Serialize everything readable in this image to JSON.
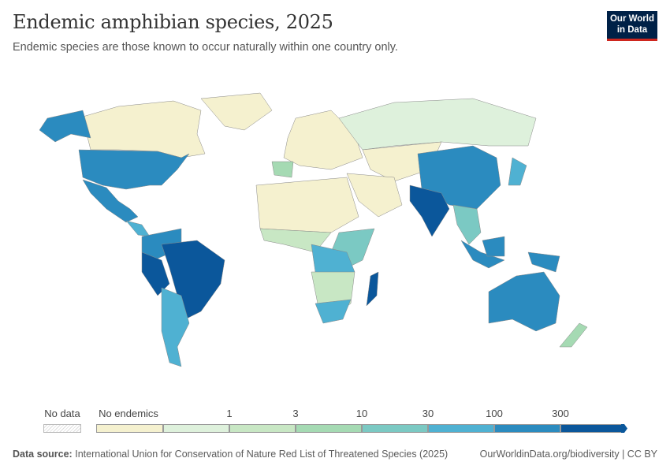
{
  "header": {
    "title": "Endemic amphibian species, 2025",
    "subtitle": "Endemic species are those known to occur naturally within one country only.",
    "logo_text": "Our World in Data"
  },
  "legend": {
    "no_data_label": "No data",
    "bins": [
      {
        "label": "No endemics",
        "color": "#f5f1cf"
      },
      {
        "label": "",
        "color": "#def1dc"
      },
      {
        "label": "1",
        "color": "#c8e7c4"
      },
      {
        "label": "3",
        "color": "#a5dab3"
      },
      {
        "label": "10",
        "color": "#7bc9c3"
      },
      {
        "label": "30",
        "color": "#4fb1d2"
      },
      {
        "label": "100",
        "color": "#2b8bbf"
      },
      {
        "label": "300",
        "color": "#0b579b"
      }
    ]
  },
  "footer": {
    "source_label": "Data source:",
    "source_text": "International Union for Conservation of Nature Red List of Threatened Species (2025)",
    "url": "OurWorldinData.org/biodiversity | CC BY"
  }
}
